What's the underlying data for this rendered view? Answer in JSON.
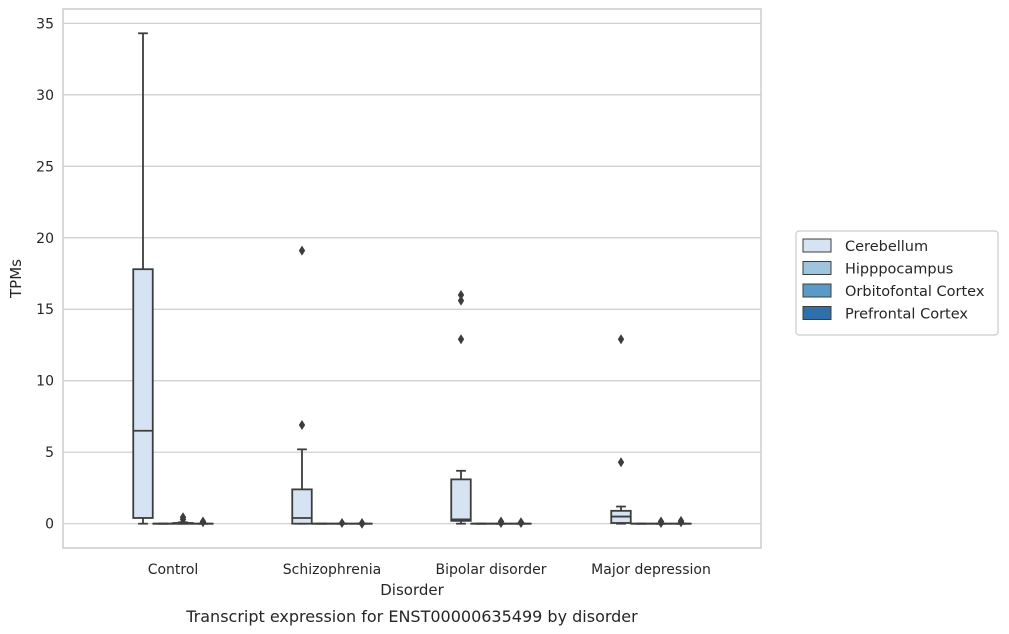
{
  "chart_data": {
    "type": "box",
    "xlabel": "Disorder",
    "ylabel": "TPMs",
    "caption": "Transcript expression for ENST00000635499 by disorder",
    "ylim": [
      -1.7,
      36
    ],
    "yticks": [
      0,
      5,
      10,
      15,
      20,
      25,
      30,
      35
    ],
    "grid": "horizontal",
    "legend_position": "right",
    "categories": [
      "Control",
      "Schizophrenia",
      "Bipolar disorder",
      "Major depression"
    ],
    "series": [
      {
        "name": "Cerebellum",
        "color": "#d5e3f2",
        "boxes": [
          {
            "whislo": 0,
            "q1": 0.4,
            "med": 6.5,
            "q3": 17.8,
            "whishi": 34.3,
            "fliers": []
          },
          {
            "whislo": 0,
            "q1": 0.0,
            "med": 0.4,
            "q3": 2.4,
            "whishi": 5.2,
            "fliers": [
              6.9,
              19.1
            ]
          },
          {
            "whislo": 0,
            "q1": 0.2,
            "med": 0.3,
            "q3": 3.1,
            "whishi": 3.7,
            "fliers": [
              12.9,
              15.6,
              16.0
            ]
          },
          {
            "whislo": 0,
            "q1": 0.05,
            "med": 0.5,
            "q3": 0.9,
            "whishi": 1.2,
            "fliers": [
              4.3,
              12.9
            ]
          }
        ]
      },
      {
        "name": "Hipppocampus",
        "color": "#9ec4de",
        "boxes": [
          {
            "whislo": 0,
            "q1": 0,
            "med": 0,
            "q3": 0,
            "whishi": 0,
            "fliers": []
          },
          {
            "whislo": 0,
            "q1": 0,
            "med": 0,
            "q3": 0,
            "whishi": 0,
            "fliers": []
          },
          {
            "whislo": 0,
            "q1": 0,
            "med": 0,
            "q3": 0,
            "whishi": 0,
            "fliers": []
          },
          {
            "whislo": 0,
            "q1": 0,
            "med": 0,
            "q3": 0,
            "whishi": 0,
            "fliers": []
          }
        ]
      },
      {
        "name": "Orbitofontal Cortex",
        "color": "#5a9ac8",
        "boxes": [
          {
            "whislo": 0,
            "q1": 0,
            "med": 0,
            "q3": 0.05,
            "whishi": 0.1,
            "fliers": [
              0.3,
              0.45
            ]
          },
          {
            "whislo": 0,
            "q1": 0,
            "med": 0,
            "q3": 0,
            "whishi": 0,
            "fliers": [
              0.05
            ]
          },
          {
            "whislo": 0,
            "q1": 0,
            "med": 0,
            "q3": 0,
            "whishi": 0,
            "fliers": [
              0.05,
              0.15
            ]
          },
          {
            "whislo": 0,
            "q1": 0,
            "med": 0,
            "q3": 0,
            "whishi": 0,
            "fliers": [
              0.05,
              0.15
            ]
          }
        ]
      },
      {
        "name": "Prefrontal Cortex",
        "color": "#2e70ac",
        "boxes": [
          {
            "whislo": 0,
            "q1": 0,
            "med": 0,
            "q3": 0,
            "whishi": 0,
            "fliers": [
              0.1,
              0.15
            ]
          },
          {
            "whislo": 0,
            "q1": 0,
            "med": 0,
            "q3": 0,
            "whishi": 0,
            "fliers": [
              0.0,
              0.05
            ]
          },
          {
            "whislo": 0,
            "q1": 0,
            "med": 0,
            "q3": 0,
            "whishi": 0,
            "fliers": [
              0.05,
              0.1
            ]
          },
          {
            "whislo": 0,
            "q1": 0,
            "med": 0,
            "q3": 0,
            "whishi": 0,
            "fliers": [
              0.1,
              0.2
            ]
          }
        ]
      }
    ]
  }
}
